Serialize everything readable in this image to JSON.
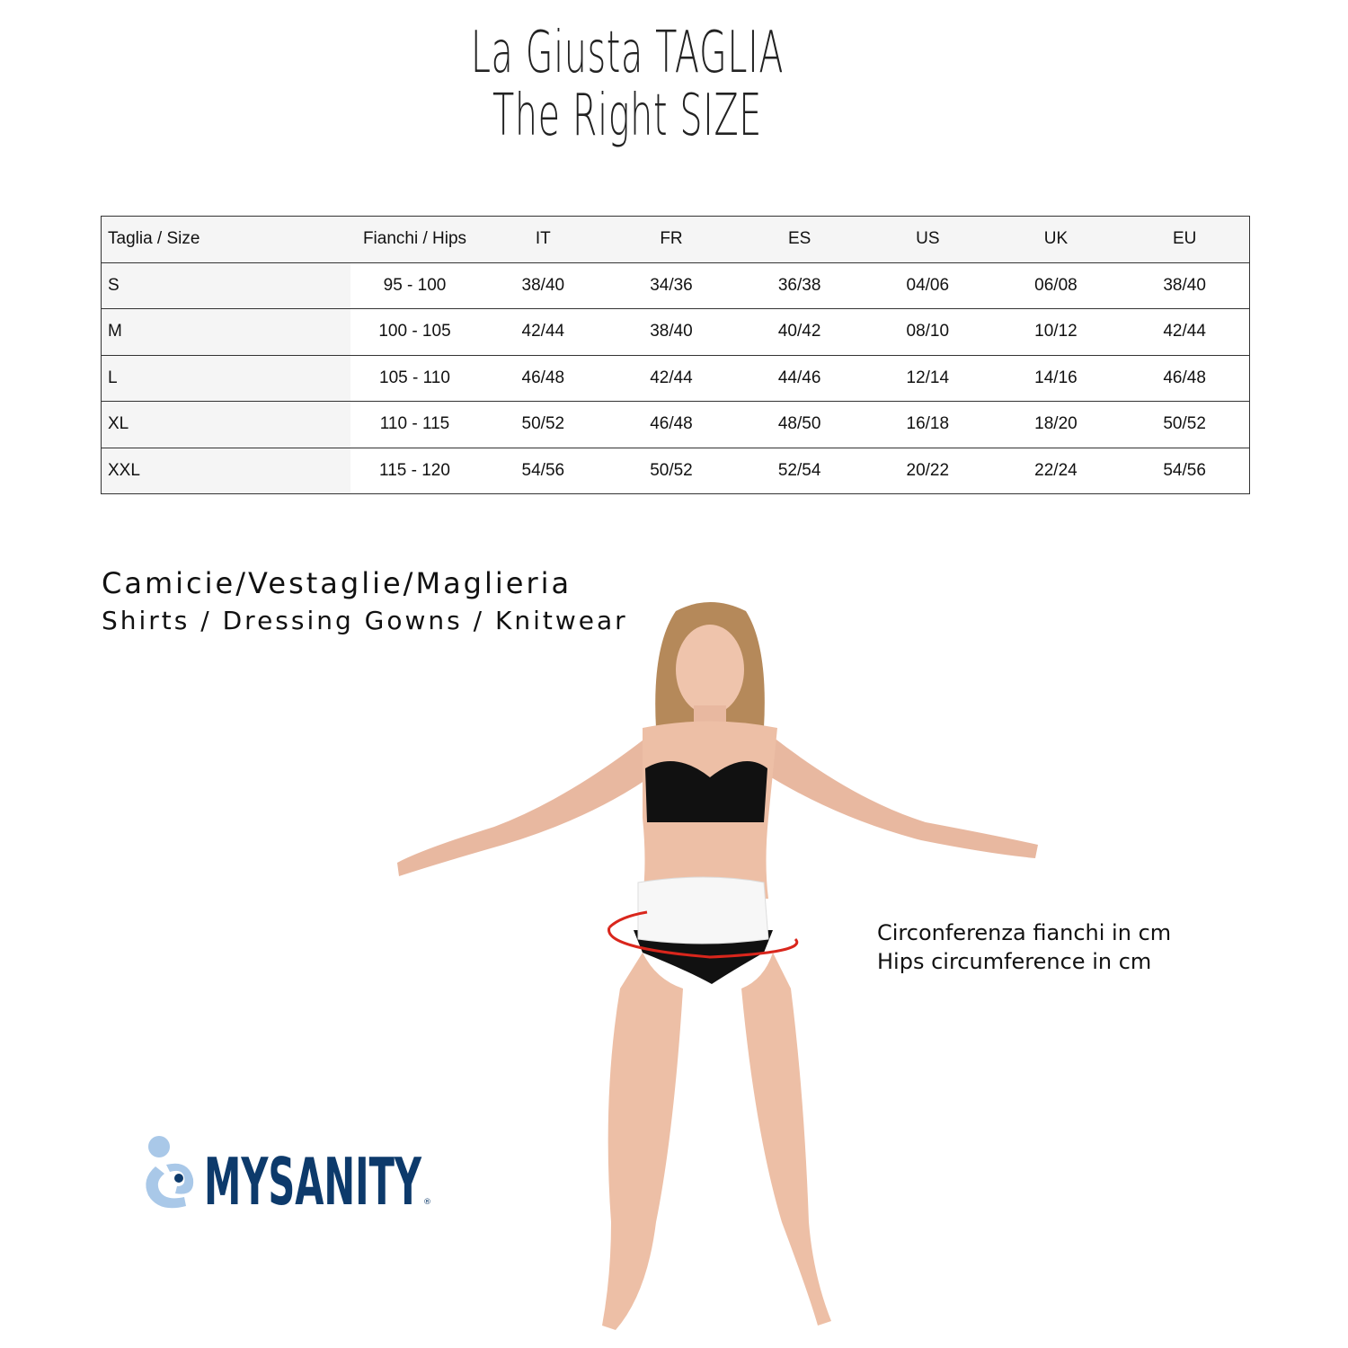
{
  "title": {
    "line1": "La Giusta TAGLIA",
    "line2": "The Right SIZE"
  },
  "table": {
    "headers": [
      "Taglia / Size",
      "Fianchi / Hips",
      "IT",
      "FR",
      "ES",
      "US",
      "UK",
      "EU"
    ],
    "rows": [
      [
        "S",
        "95 - 100",
        "38/40",
        "34/36",
        "36/38",
        "04/06",
        "06/08",
        "38/40"
      ],
      [
        "M",
        "100 - 105",
        "42/44",
        "38/40",
        "40/42",
        "08/10",
        "10/12",
        "42/44"
      ],
      [
        "L",
        "105 - 110",
        "46/48",
        "42/44",
        "44/46",
        "12/14",
        "14/16",
        "46/48"
      ],
      [
        "XL",
        "110 - 115",
        "50/52",
        "46/48",
        "48/50",
        "16/18",
        "18/20",
        "50/52"
      ],
      [
        "XXL",
        "115 - 120",
        "54/56",
        "50/52",
        "52/54",
        "20/22",
        "22/24",
        "54/56"
      ]
    ]
  },
  "category": {
    "line1": "Camicie/Vestaglie/Maglieria",
    "line2": "Shirts / Dressing Gowns / Knitwear"
  },
  "measure_note": {
    "line1": "Circonferenza fianchi in cm",
    "line2": "Hips circumference in cm"
  },
  "logo": {
    "text": "MYSANITY",
    "color_dark": "#0d3a6b",
    "color_light": "#a9c8e8"
  },
  "colors": {
    "hip_line": "#d9261c",
    "header_bg": "#f5f5f5"
  }
}
